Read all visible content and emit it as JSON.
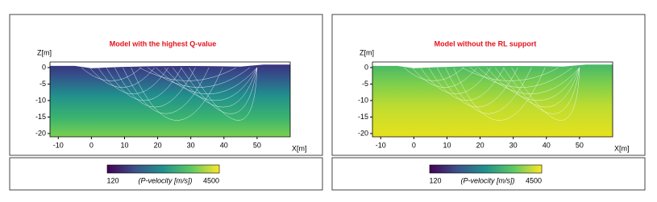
{
  "chart_data": [
    {
      "type": "velocity-model",
      "title": "Model with the highest Q-value",
      "title_color": "#e3121b",
      "y_label": "Z[m]",
      "x_label": "X[m]",
      "xlim": [
        -12.5,
        60
      ],
      "xticks": [
        -10,
        0,
        10,
        20,
        30,
        40,
        50
      ],
      "ylim": [
        -21,
        1.7
      ],
      "yticks": [
        0,
        -5,
        -10,
        -15,
        -20
      ],
      "colorbar": {
        "min": 120,
        "max": 4500,
        "label": "(P-velocity [m/s])"
      }
    },
    {
      "type": "velocity-model",
      "title": "Model without the RL support",
      "title_color": "#e3121b",
      "y_label": "Z[m]",
      "x_label": "X[m]",
      "xlim": [
        -12.5,
        60
      ],
      "xticks": [
        -10,
        0,
        10,
        20,
        30,
        40,
        50
      ],
      "ylim": [
        -21,
        1.7
      ],
      "yticks": [
        0,
        -5,
        -10,
        -15,
        -20
      ],
      "colorbar": {
        "min": 120,
        "max": 4500,
        "label": "(P-velocity [m/s])"
      }
    }
  ]
}
